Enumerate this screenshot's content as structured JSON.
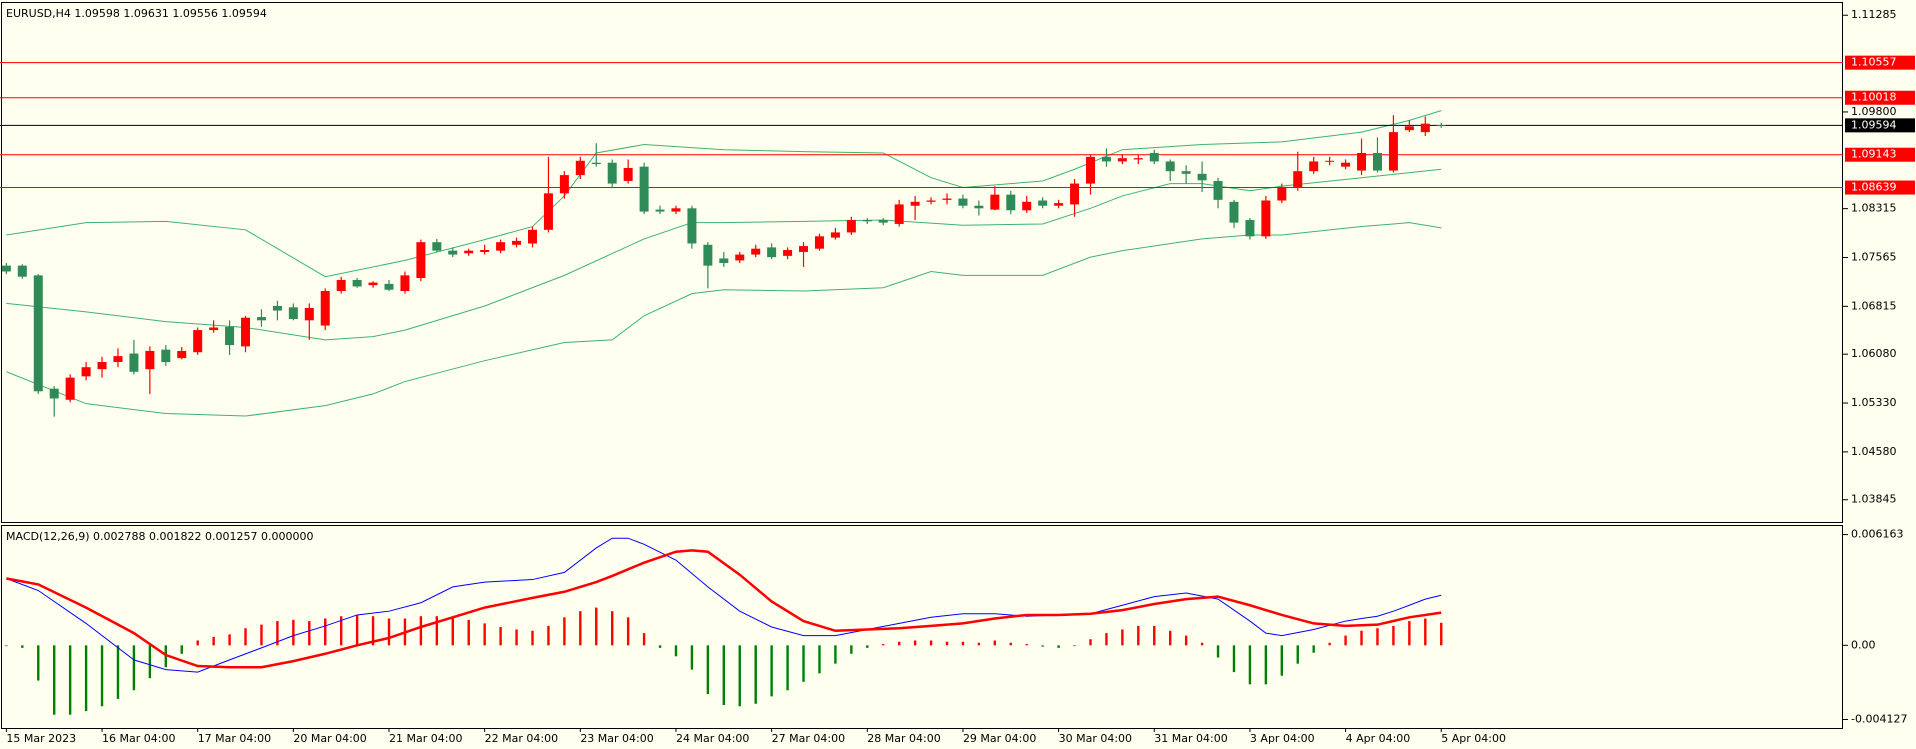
{
  "chart_data": [
    {
      "type": "candlestick",
      "title": "EURUSD,H4  1.09598 1.09631 1.09556 1.09594",
      "up_color": "#ff0000",
      "down_color": "#2e8b57",
      "xlim": [
        -0.4,
        115.2
      ],
      "ylim": [
        1.03503,
        1.11473
      ],
      "yticks": [
        1.11285,
        {
          "value": 1.098,
          "label": "1.09800"
        },
        1.08315,
        1.07565,
        1.06815,
        {
          "value": 1.0608,
          "label": "1.06080"
        },
        {
          "value": 1.0533,
          "label": "1.05330"
        },
        {
          "value": 1.0458,
          "label": "1.04580"
        },
        1.03845
      ],
      "open": [
        1.0744,
        1.0744,
        1.0729,
        1.0555,
        1.0538,
        1.0574,
        1.0585,
        1.0596,
        1.0609,
        1.0585,
        1.0615,
        1.0602,
        1.0611,
        1.0645,
        1.065,
        1.062,
        1.0665,
        1.0682,
        1.068,
        1.066,
        1.0652,
        1.0705,
        1.0722,
        1.0714,
        1.0716,
        1.0705,
        1.0725,
        1.078,
        1.0767,
        1.0763,
        1.0765,
        1.0767,
        1.0776,
        1.0778,
        1.0799,
        1.0855,
        1.0883,
        1.0902,
        1.0902,
        1.0874,
        1.0896,
        1.083,
        1.0827,
        1.0832,
        1.0776,
        1.0755,
        1.0752,
        1.0761,
        1.0772,
        1.0759,
        1.0765,
        1.077,
        1.0787,
        1.0795,
        1.0814,
        1.0814,
        1.0808,
        1.0836,
        1.0842,
        1.0845,
        1.0847,
        1.0836,
        1.083,
        1.0853,
        1.0829,
        1.0844,
        1.0836,
        1.0838,
        1.087,
        1.0911,
        1.0904,
        1.0907,
        1.0917,
        1.0904,
        1.0889,
        1.0885,
        1.0874,
        1.0842,
        1.0814,
        1.0789,
        1.0844,
        1.0864,
        1.0889,
        1.0904,
        1.0896,
        1.089,
        1.0917,
        1.089,
        1.0952,
        1.0949,
        1.09598
      ],
      "high": [
        1.0748,
        1.0746,
        1.0731,
        1.0559,
        1.0577,
        1.0596,
        1.0604,
        1.0617,
        1.063,
        1.062,
        1.0622,
        1.0619,
        1.0649,
        1.066,
        1.066,
        1.0667,
        1.0677,
        1.069,
        1.0686,
        1.0686,
        1.0709,
        1.0727,
        1.0725,
        1.072,
        1.0722,
        1.0735,
        1.0784,
        1.0785,
        1.0772,
        1.077,
        1.0776,
        1.0784,
        1.0787,
        1.0804,
        1.0911,
        1.0889,
        1.0911,
        1.0932,
        1.0907,
        1.0907,
        1.0902,
        1.0836,
        1.0836,
        1.0836,
        1.078,
        1.0765,
        1.0765,
        1.0776,
        1.0778,
        1.0772,
        1.078,
        1.0793,
        1.0802,
        1.0819,
        1.0817,
        1.0817,
        1.0845,
        1.0851,
        1.0849,
        1.0855,
        1.0853,
        1.0844,
        1.0866,
        1.0859,
        1.0851,
        1.0849,
        1.0845,
        1.0877,
        1.0915,
        1.0924,
        1.0915,
        1.0915,
        1.0922,
        1.0907,
        1.0898,
        1.0904,
        1.0879,
        1.0845,
        1.0817,
        1.0851,
        1.087,
        1.0919,
        1.0911,
        1.0911,
        1.0907,
        1.0939,
        1.0941,
        1.0975,
        1.0967,
        1.0973,
        1.09631
      ],
      "low": [
        1.0731,
        1.0724,
        1.0547,
        1.0512,
        1.0534,
        1.0568,
        1.0572,
        1.0588,
        1.0577,
        1.0547,
        1.059,
        1.06,
        1.0607,
        1.0641,
        1.0607,
        1.0611,
        1.065,
        1.066,
        1.066,
        1.063,
        1.0645,
        1.0701,
        1.071,
        1.071,
        1.0705,
        1.0701,
        1.072,
        1.0765,
        1.0757,
        1.0759,
        1.0761,
        1.0763,
        1.0772,
        1.0772,
        1.0795,
        1.0847,
        1.0877,
        1.0896,
        1.0864,
        1.087,
        1.0823,
        1.0823,
        1.0823,
        1.077,
        1.0709,
        1.0742,
        1.0748,
        1.0757,
        1.0754,
        1.0754,
        1.0742,
        1.0767,
        1.0784,
        1.0791,
        1.0808,
        1.0806,
        1.0804,
        1.0814,
        1.0838,
        1.0838,
        1.0832,
        1.0821,
        1.0829,
        1.0823,
        1.0825,
        1.0832,
        1.0832,
        1.0819,
        1.0853,
        1.0896,
        1.09,
        1.09,
        1.09,
        1.0874,
        1.087,
        1.0857,
        1.0832,
        1.0802,
        1.0784,
        1.0785,
        1.084,
        1.0859,
        1.0885,
        1.0898,
        1.0892,
        1.0883,
        1.0887,
        1.0887,
        1.0949,
        1.0943,
        1.09556
      ],
      "close": [
        1.0735,
        1.0727,
        1.0551,
        1.054,
        1.0572,
        1.0588,
        1.0596,
        1.0605,
        1.0581,
        1.0613,
        1.0596,
        1.0613,
        1.0645,
        1.0649,
        1.0622,
        1.0664,
        1.066,
        1.0675,
        1.0662,
        1.0679,
        1.0705,
        1.0722,
        1.0712,
        1.0718,
        1.0707,
        1.0729,
        1.078,
        1.0767,
        1.0761,
        1.0767,
        1.0768,
        1.078,
        1.0782,
        1.0799,
        1.0855,
        1.0883,
        1.0905,
        1.09,
        1.087,
        1.0894,
        1.0827,
        1.0827,
        1.0832,
        1.0778,
        1.0744,
        1.0748,
        1.0761,
        1.077,
        1.0757,
        1.0768,
        1.0774,
        1.0789,
        1.0795,
        1.0814,
        1.0812,
        1.081,
        1.0838,
        1.0842,
        1.0844,
        1.0847,
        1.0836,
        1.0832,
        1.0853,
        1.0829,
        1.0842,
        1.0836,
        1.084,
        1.087,
        1.0911,
        1.0904,
        1.0909,
        1.0909,
        1.0904,
        1.0889,
        1.0885,
        1.0875,
        1.0845,
        1.081,
        1.0789,
        1.0844,
        1.0864,
        1.0889,
        1.0904,
        1.0905,
        1.0902,
        1.0917,
        1.089,
        1.0949,
        1.0958,
        1.0962,
        1.09594
      ],
      "bands": [
        {
          "color": "#3cb371",
          "x": [
            0,
            5,
            10,
            15,
            20,
            25,
            30,
            33,
            35,
            37,
            40,
            45,
            50,
            55,
            58,
            60,
            65,
            67,
            70,
            75,
            80,
            85,
            88,
            90
          ],
          "values": [
            1.0791,
            1.081,
            1.0812,
            1.0799,
            1.0727,
            1.0752,
            1.0784,
            1.0804,
            1.0851,
            1.0917,
            1.093,
            1.0922,
            1.0919,
            1.0917,
            1.0879,
            1.0864,
            1.0874,
            1.0892,
            1.0922,
            1.093,
            1.0934,
            1.0949,
            1.0967,
            1.0982
          ]
        },
        {
          "color": "#3cb371",
          "x": [
            0,
            5,
            10,
            15,
            20,
            23,
            25,
            30,
            35,
            40,
            43,
            45,
            50,
            55,
            60,
            65,
            68,
            70,
            73,
            75,
            78,
            80,
            85,
            90
          ],
          "values": [
            1.0686,
            1.0673,
            1.0658,
            1.0649,
            1.063,
            1.0635,
            1.0645,
            1.0682,
            1.0729,
            1.0785,
            1.081,
            1.081,
            1.0812,
            1.0814,
            1.0806,
            1.0808,
            1.0832,
            1.0851,
            1.087,
            1.087,
            1.0859,
            1.0866,
            1.0879,
            1.0892
          ]
        },
        {
          "color": "#3cb371",
          "x": [
            0,
            5,
            10,
            15,
            20,
            23,
            25,
            30,
            35,
            38,
            40,
            43,
            45,
            50,
            55,
            58,
            60,
            65,
            68,
            70,
            75,
            78,
            80,
            85,
            88,
            90
          ],
          "values": [
            1.0581,
            1.0532,
            1.0517,
            1.0513,
            1.0529,
            1.0547,
            1.0566,
            1.0598,
            1.0626,
            1.063,
            1.0667,
            1.0701,
            1.0707,
            1.0705,
            1.071,
            1.0735,
            1.0729,
            1.0729,
            1.0757,
            1.0767,
            1.0785,
            1.0791,
            1.0791,
            1.0804,
            1.081,
            1.0802
          ]
        }
      ],
      "levels": [
        {
          "value": 1.10557,
          "color": "#ff0000"
        },
        {
          "value": 1.10018,
          "color": "#ff0000"
        },
        {
          "value": 1.09143,
          "color": "#ff0000"
        },
        {
          "value": 1.08639,
          "color": "#ff0000"
        }
      ],
      "current_price": {
        "value": 1.09594,
        "color": "#000000"
      }
    },
    {
      "type": "macd",
      "title": "MACD(12,26,9) 0.002788 0.001822 0.001257 0.000000",
      "xlim": [
        -0.4,
        115.2
      ],
      "ylim": [
        -0.0046,
        0.00664
      ],
      "yticks": [
        0.006163,
        {
          "value": 0,
          "label": "0.00"
        },
        -0.004127
      ],
      "xticks": [
        {
          "value": 0,
          "label": "15 Mar 2023"
        },
        {
          "value": 6,
          "label": "16 Mar 04:00"
        },
        {
          "value": 12,
          "label": "17 Mar 04:00"
        },
        {
          "value": 18,
          "label": "20 Mar 04:00"
        },
        {
          "value": 24,
          "label": "21 Mar 04:00"
        },
        {
          "value": 30,
          "label": "22 Mar 04:00"
        },
        {
          "value": 36,
          "label": "23 Mar 04:00"
        },
        {
          "value": 42,
          "label": "24 Mar 04:00"
        },
        {
          "value": 48,
          "label": "27 Mar 04:00"
        },
        {
          "value": 54,
          "label": "28 Mar 04:00"
        },
        {
          "value": 60,
          "label": "29 Mar 04:00"
        },
        {
          "value": 66,
          "label": "30 Mar 04:00"
        },
        {
          "value": 72,
          "label": "31 Mar 04:00"
        },
        {
          "value": 78,
          "label": "3 Apr 04:00"
        },
        {
          "value": 84,
          "label": "4 Apr 04:00"
        },
        {
          "value": 90,
          "label": "5 Apr 04:00"
        }
      ],
      "histogram": {
        "up_color": "#ff0000",
        "down_color": "#008000",
        "values": [
          0,
          -0.00014,
          -0.00196,
          -0.00386,
          -0.00386,
          -0.00366,
          -0.00339,
          -0.00298,
          -0.0025,
          -0.00183,
          -0.00122,
          -0.00047,
          0.00027,
          0.00047,
          0.00061,
          0.00095,
          0.00115,
          0.00135,
          0.00142,
          0.00135,
          0.00149,
          0.00162,
          0.00169,
          0.00162,
          0.00149,
          0.00149,
          0.00162,
          0.00162,
          0.00156,
          0.00142,
          0.00122,
          0.00102,
          0.00088,
          0.00081,
          0.00108,
          0.00156,
          0.0019,
          0.0021,
          0.0019,
          0.00156,
          0.00068,
          -0.00014,
          -0.00061,
          -0.00135,
          -0.00271,
          -0.00332,
          -0.00339,
          -0.00325,
          -0.00284,
          -0.0025,
          -0.00203,
          -0.00156,
          -0.00102,
          -0.00047,
          -0.00014,
          7e-05,
          0.0002,
          0.00027,
          0.00027,
          0.0002,
          0.0002,
          0.00014,
          0.00027,
          0.00014,
          7e-05,
          -7e-05,
          -0.00014,
          0,
          0.00034,
          0.00068,
          0.00088,
          0.00108,
          0.00108,
          0.00081,
          0.00054,
          0.00014,
          -0.00068,
          -0.00149,
          -0.00217,
          -0.00217,
          -0.00169,
          -0.00102,
          -0.00041,
          0.00014,
          0.00054,
          0.00081,
          0.00095,
          0.00108,
          0.00135,
          0.00149,
          0.001257
        ]
      },
      "lines": [
        {
          "color": "#0000ff",
          "width": 1,
          "x": [
            0,
            2,
            5,
            8,
            10,
            12,
            14,
            16,
            18,
            20,
            22,
            24,
            26,
            28,
            30,
            33,
            35,
            37,
            38,
            39,
            40,
            42,
            44,
            46,
            48,
            50,
            52,
            54,
            56,
            58,
            60,
            62,
            64,
            66,
            68,
            70,
            72,
            74,
            76,
            78,
            79,
            80,
            82,
            84,
            85,
            86,
            87,
            88,
            89,
            90
          ],
          "values": [
            0.00372,
            0.00305,
            0.00122,
            -0.00081,
            -0.00135,
            -0.00149,
            -0.00081,
            -0.00014,
            0.00054,
            0.00108,
            0.00169,
            0.0019,
            0.00237,
            0.00325,
            0.00352,
            0.00366,
            0.00406,
            0.00542,
            0.00596,
            0.00596,
            0.00562,
            0.00474,
            0.00325,
            0.0019,
            0.00102,
            0.00054,
            0.00054,
            0.00088,
            0.00122,
            0.00156,
            0.00176,
            0.00176,
            0.00162,
            0.00169,
            0.00176,
            0.00223,
            0.00271,
            0.00291,
            0.00257,
            0.00135,
            0.00068,
            0.00054,
            0.00088,
            0.00135,
            0.00149,
            0.00162,
            0.0019,
            0.00223,
            0.00257,
            0.002788
          ]
        },
        {
          "color": "#ff0000",
          "width": 2.5,
          "x": [
            0,
            2,
            5,
            8,
            10,
            12,
            14,
            16,
            18,
            20,
            22,
            24,
            26,
            28,
            30,
            33,
            35,
            37,
            38,
            40,
            42,
            43,
            44,
            46,
            48,
            50,
            52,
            54,
            56,
            58,
            60,
            62,
            64,
            66,
            68,
            70,
            72,
            74,
            76,
            78,
            80,
            82,
            84,
            86,
            88,
            90
          ],
          "values": [
            0.00372,
            0.00339,
            0.0021,
            0.00068,
            -0.00054,
            -0.00115,
            -0.00122,
            -0.00122,
            -0.00088,
            -0.00047,
            0,
            0.00041,
            0.00102,
            0.00156,
            0.0021,
            0.00264,
            0.00298,
            0.00352,
            0.00386,
            0.0046,
            0.00521,
            0.00528,
            0.00521,
            0.00393,
            0.00244,
            0.00135,
            0.00081,
            0.00088,
            0.00095,
            0.00108,
            0.00122,
            0.00149,
            0.00169,
            0.00169,
            0.00176,
            0.00196,
            0.0023,
            0.00257,
            0.00271,
            0.00223,
            0.00169,
            0.00122,
            0.00108,
            0.00115,
            0.00156,
            0.001822
          ]
        }
      ]
    }
  ]
}
